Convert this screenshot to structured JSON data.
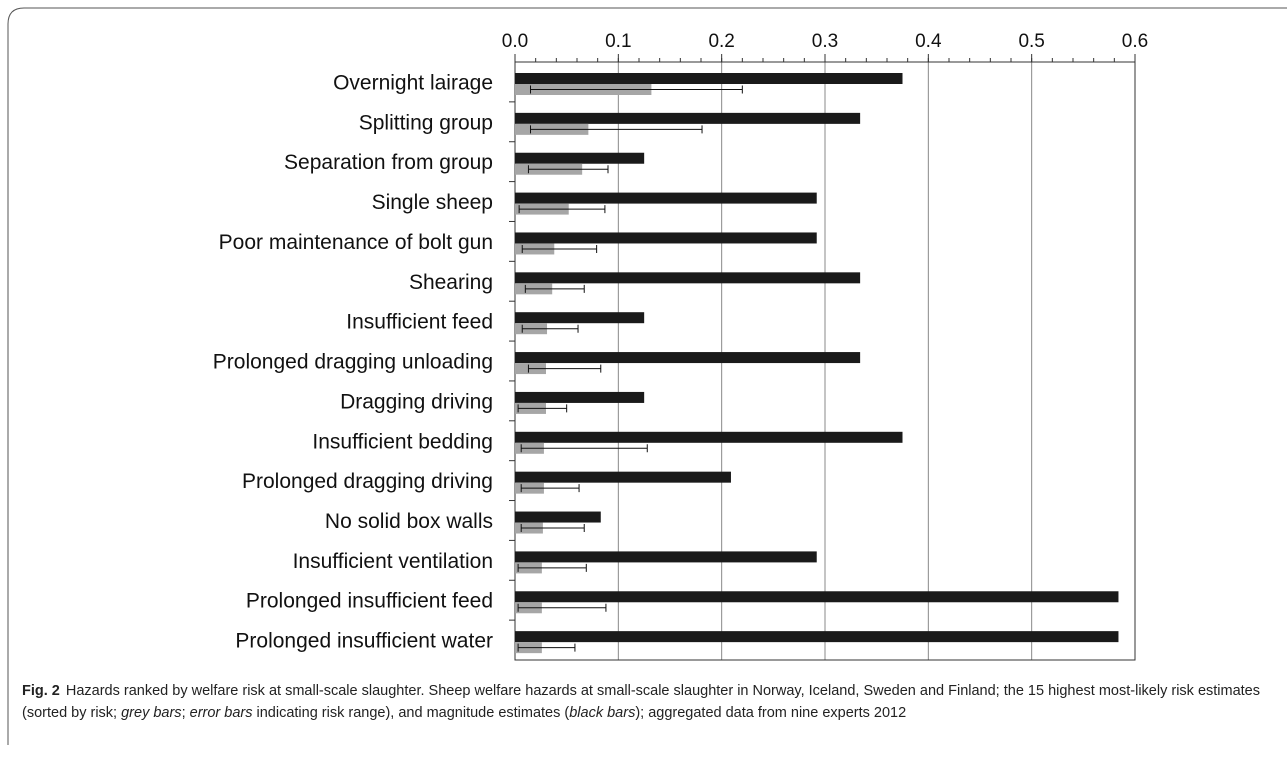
{
  "chart_data": {
    "type": "bar",
    "orientation": "horizontal",
    "categories": [
      "Overnight lairage",
      "Splitting group",
      "Separation from group",
      "Single sheep",
      "Poor maintenance of bolt gun",
      "Shearing",
      "Insufficient feed",
      "Prolonged dragging unloading",
      "Dragging driving",
      "Insufficient bedding",
      "Prolonged dragging driving",
      "No solid box walls",
      "Insufficient ventilation",
      "Prolonged insufficient feed",
      "Prolonged insufficient water"
    ],
    "series": [
      {
        "color": "#1a1a1a",
        "values": [
          0.375,
          0.334,
          0.125,
          0.292,
          0.292,
          0.334,
          0.125,
          0.334,
          0.125,
          0.375,
          0.209,
          0.083,
          0.292,
          0.584,
          0.584
        ]
      },
      {
        "color": "#a6a6a6",
        "values": [
          0.132,
          0.071,
          0.065,
          0.052,
          0.038,
          0.036,
          0.031,
          0.03,
          0.03,
          0.028,
          0.028,
          0.027,
          0.026,
          0.026,
          0.026
        ],
        "range_low": [
          0.015,
          0.015,
          0.013,
          0.004,
          0.007,
          0.01,
          0.007,
          0.013,
          0.003,
          0.006,
          0.006,
          0.006,
          0.003,
          0.003,
          0.003
        ],
        "range_high": [
          0.22,
          0.181,
          0.09,
          0.087,
          0.079,
          0.067,
          0.061,
          0.083,
          0.05,
          0.128,
          0.062,
          0.067,
          0.069,
          0.088,
          0.058
        ]
      }
    ],
    "xlim": [
      0,
      0.6
    ],
    "xticks": [
      {
        "value": 0,
        "label": "0.0"
      },
      0.1,
      0.2,
      0.3,
      0.4,
      0.5,
      0.6
    ],
    "grid": true,
    "caption_label": "Fig. 2",
    "caption": [
      "Hazards ranked by welfare risk at small-scale slaughter. Sheep welfare hazards at small-scale slaughter in Norway, Iceland, Sweden and Finland; the 15 highest most-likely risk estimates (sorted by risk; ",
      "grey bars",
      "; ",
      "error bars",
      " indicating risk range), and magnitude estimates (",
      "black bars",
      "); aggregated data from nine experts 2012"
    ]
  }
}
